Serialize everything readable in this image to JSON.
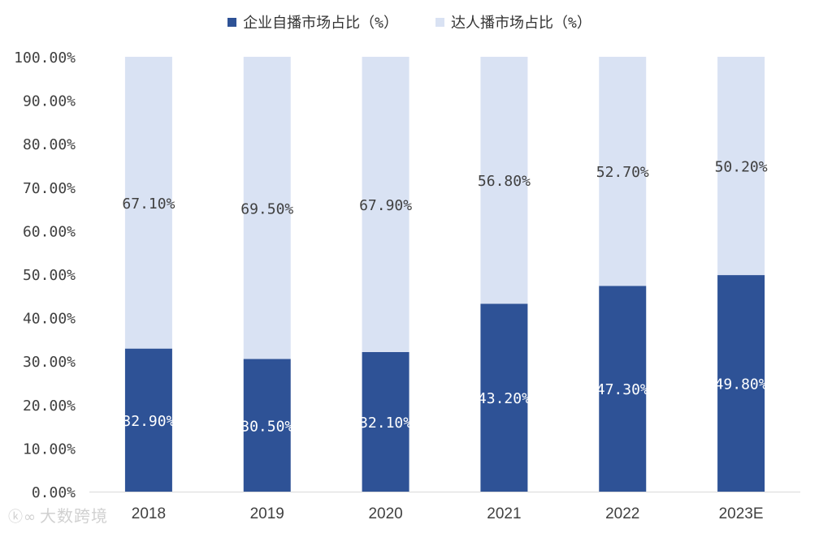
{
  "chart_data": {
    "type": "bar",
    "stacked": true,
    "categories": [
      "2018",
      "2019",
      "2020",
      "2021",
      "2022",
      "2023E"
    ],
    "series": [
      {
        "name": "企业自播市场占比（%）",
        "values": [
          32.9,
          30.5,
          32.1,
          43.2,
          47.3,
          49.8
        ],
        "labels": [
          "32.90%",
          "30.50%",
          "32.10%",
          "43.20%",
          "47.30%",
          "49.80%"
        ],
        "color": "#2e5296"
      },
      {
        "name": "达人播市场占比（%）",
        "values": [
          67.1,
          69.5,
          67.9,
          56.8,
          52.7,
          50.2
        ],
        "labels": [
          "67.10%",
          "69.50%",
          "67.90%",
          "56.80%",
          "52.70%",
          "50.20%"
        ],
        "color": "#d9e2f3"
      }
    ],
    "ylim": [
      0,
      100
    ],
    "yticks": [
      "0.00%",
      "10.00%",
      "20.00%",
      "30.00%",
      "40.00%",
      "50.00%",
      "60.00%",
      "70.00%",
      "80.00%",
      "90.00%",
      "100.00%"
    ],
    "title": "",
    "xlabel": "",
    "ylabel": "",
    "legend_position": "top-center"
  },
  "legend": {
    "item1_label": "企业自播市场占比（%）",
    "item2_label": "达人播市场占比（%）"
  },
  "watermark": {
    "text": "大数跨境"
  }
}
